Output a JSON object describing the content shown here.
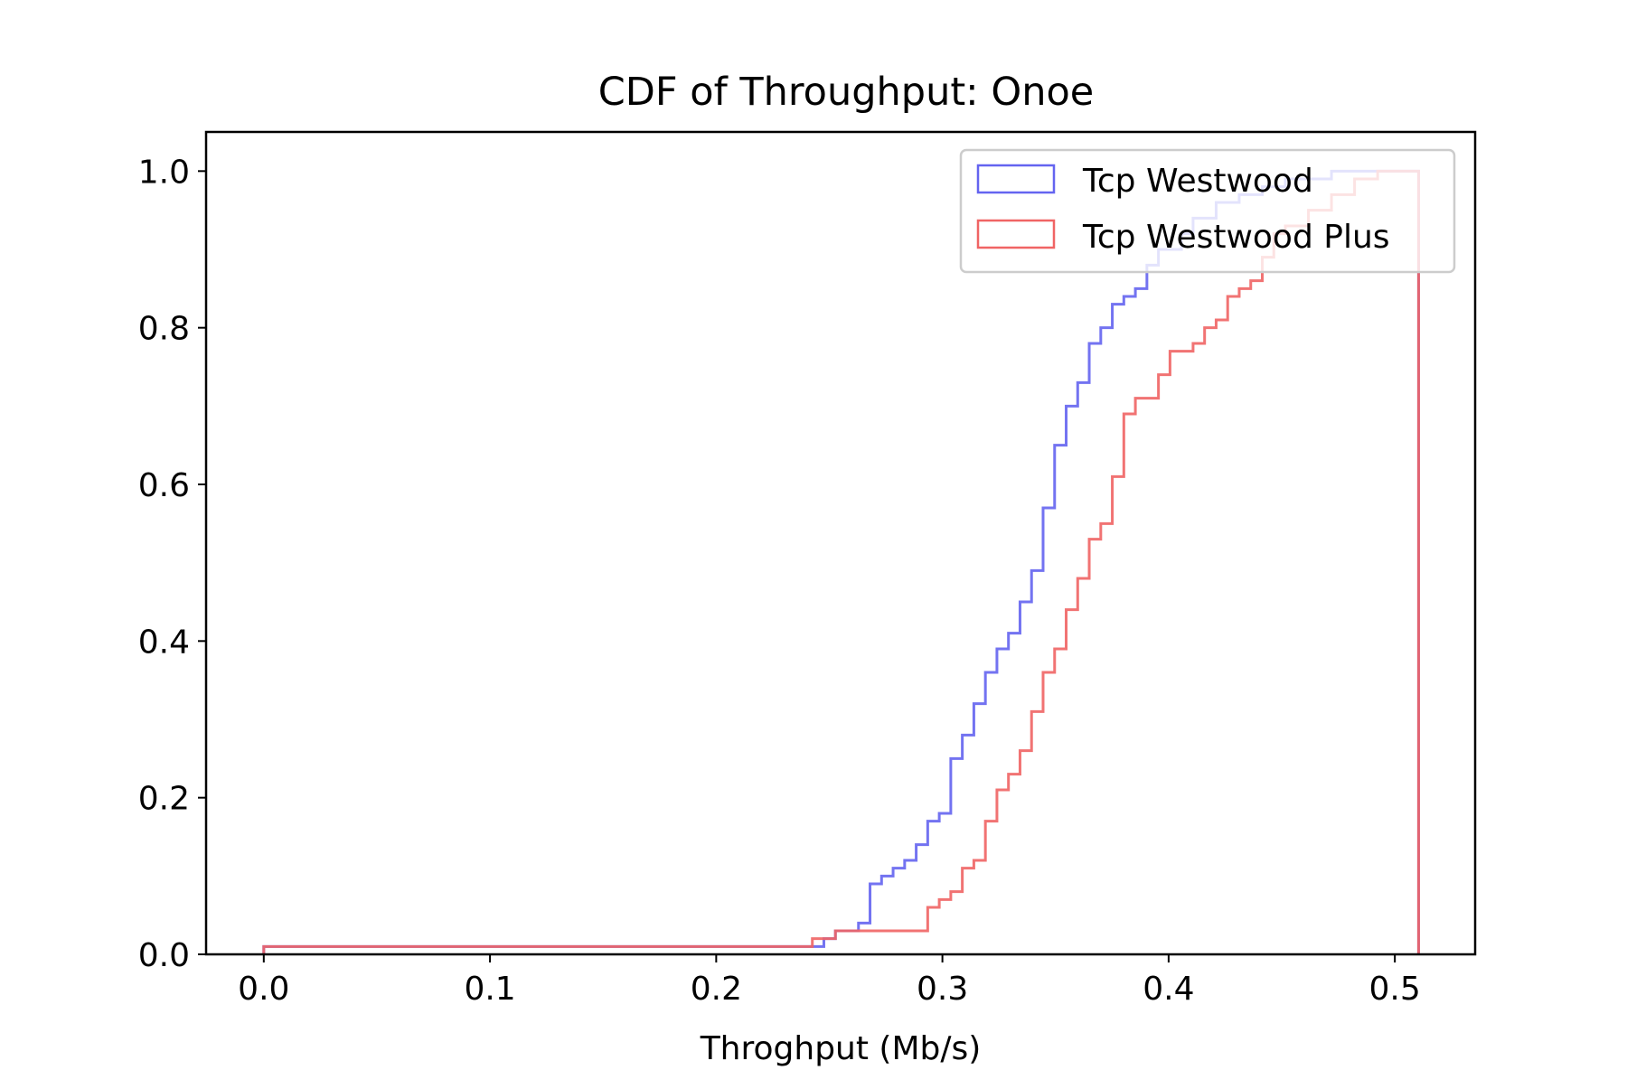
{
  "chart_data": {
    "type": "line",
    "title": "CDF of Throughput: Onoe",
    "xlabel": "Throghput (Mb/s)",
    "ylabel": "",
    "xlim": [
      -0.0255,
      0.5355
    ],
    "ylim": [
      0,
      1.05
    ],
    "xticks": [
      0.0,
      0.1,
      0.2,
      0.3,
      0.4,
      0.5
    ],
    "xtick_labels": [
      "0.0",
      "0.1",
      "0.2",
      "0.3",
      "0.4",
      "0.5"
    ],
    "yticks": [
      0.0,
      0.2,
      0.4,
      0.6,
      0.8,
      1.0
    ],
    "ytick_labels": [
      "0.0",
      "0.2",
      "0.4",
      "0.6",
      "0.8",
      "1.0"
    ],
    "grid": false,
    "legend_position": "top-right",
    "series": [
      {
        "name": "Tcp Westwood",
        "color": "#6464f0",
        "x": [
          0.0,
          0.0,
          0.2425,
          0.2476,
          0.2527,
          0.2629,
          0.268,
          0.2731,
          0.2782,
          0.2833,
          0.2884,
          0.2935,
          0.2986,
          0.3037,
          0.3088,
          0.3139,
          0.319,
          0.3241,
          0.3292,
          0.3343,
          0.3394,
          0.3445,
          0.3496,
          0.3547,
          0.3598,
          0.3649,
          0.37,
          0.3751,
          0.3802,
          0.3853,
          0.3904,
          0.3955,
          0.4057,
          0.4108,
          0.421,
          0.4312,
          0.4414,
          0.4516,
          0.4618,
          0.472,
          0.4822,
          0.4924,
          0.5105,
          0.5105
        ],
        "y": [
          0.0,
          0.01,
          0.01,
          0.02,
          0.03,
          0.04,
          0.09,
          0.1,
          0.11,
          0.12,
          0.14,
          0.17,
          0.18,
          0.25,
          0.28,
          0.32,
          0.36,
          0.39,
          0.41,
          0.45,
          0.49,
          0.57,
          0.65,
          0.7,
          0.73,
          0.78,
          0.8,
          0.83,
          0.84,
          0.85,
          0.88,
          0.9,
          0.92,
          0.94,
          0.96,
          0.97,
          0.98,
          0.99,
          0.99,
          1.0,
          1.0,
          1.0,
          1.0,
          0.0
        ]
      },
      {
        "name": "Tcp Westwood Plus",
        "color": "#f06464",
        "x": [
          0.0,
          0.0,
          0.2425,
          0.2527,
          0.2629,
          0.2935,
          0.2986,
          0.3037,
          0.3088,
          0.3139,
          0.319,
          0.3241,
          0.3292,
          0.3343,
          0.3394,
          0.3445,
          0.3496,
          0.3547,
          0.3598,
          0.3649,
          0.37,
          0.3751,
          0.3802,
          0.3853,
          0.3955,
          0.4006,
          0.4108,
          0.4159,
          0.421,
          0.4261,
          0.4312,
          0.4363,
          0.4414,
          0.4465,
          0.4516,
          0.4618,
          0.472,
          0.4822,
          0.4924,
          0.5105,
          0.5105
        ],
        "y": [
          0.0,
          0.01,
          0.02,
          0.03,
          0.03,
          0.06,
          0.07,
          0.08,
          0.11,
          0.12,
          0.17,
          0.21,
          0.23,
          0.26,
          0.31,
          0.36,
          0.39,
          0.44,
          0.48,
          0.53,
          0.55,
          0.61,
          0.69,
          0.71,
          0.74,
          0.77,
          0.78,
          0.8,
          0.81,
          0.84,
          0.85,
          0.86,
          0.89,
          0.92,
          0.93,
          0.95,
          0.97,
          0.99,
          1.0,
          1.0,
          0.0
        ]
      }
    ]
  }
}
